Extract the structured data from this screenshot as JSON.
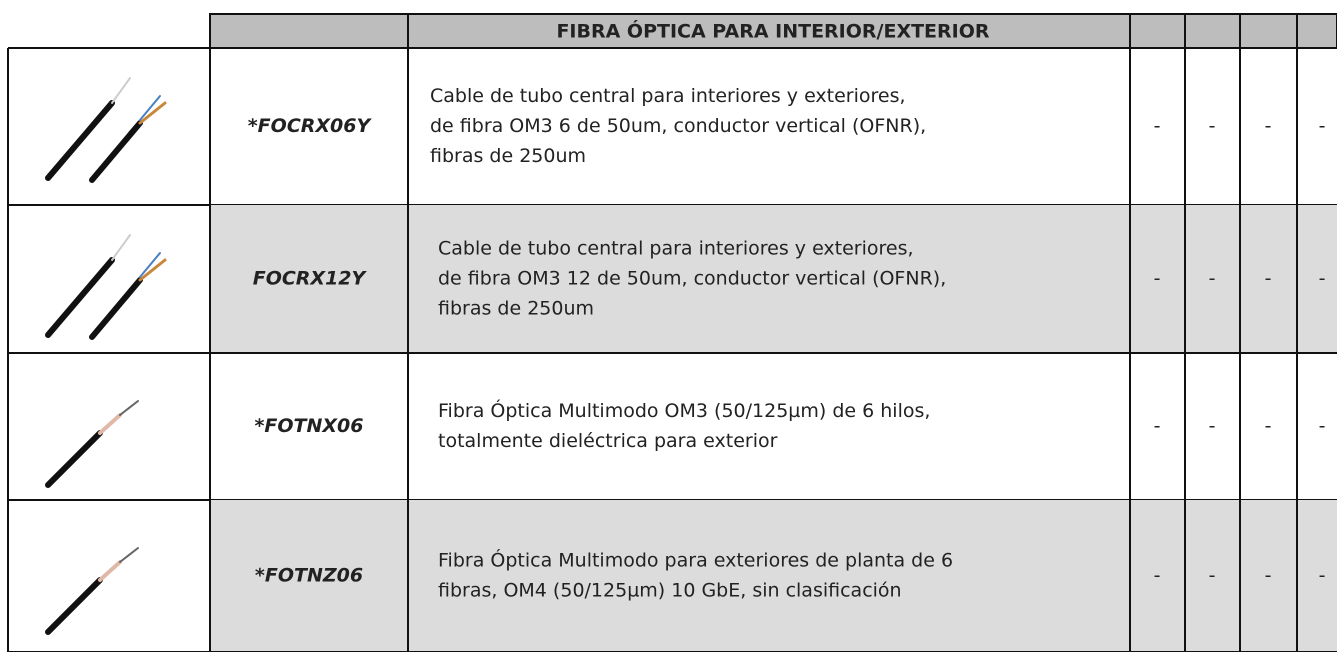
{
  "table": {
    "title": "FIBRA ÓPTICA PARA INTERIOR/EXTERIOR",
    "rows": [
      {
        "code": "*FOCRX06Y",
        "description": [
          "Cable de tubo central para interiores y exteriores,",
          "de fibra OM3 6 de 50um, conductor vertical (OFNR),",
          "fibras de 250um"
        ],
        "cols": [
          "-",
          "-",
          "-",
          "-"
        ]
      },
      {
        "code": "FOCRX12Y",
        "description": [
          "Cable de tubo central para interiores y exteriores,",
          "de fibra OM3 12 de 50um, conductor vertical (OFNR),",
          "fibras de 250um"
        ],
        "cols": [
          "-",
          "-",
          "-",
          "-"
        ]
      },
      {
        "code": "*FOTNX06",
        "description": [
          "Fibra Óptica Multimodo OM3 (50/125µm) de 6 hilos,",
          "totalmente dieléctrica para exterior"
        ],
        "cols": [
          "-",
          "-",
          "-",
          "-"
        ]
      },
      {
        "code": "*FOTNZ06",
        "description": [
          "Fibra Óptica Multimodo para exteriores de planta de 6",
          "fibras, OM4 (50/125µm) 10 GbE, sin clasificación"
        ],
        "cols": [
          "-",
          "-",
          "-",
          "-"
        ]
      }
    ]
  }
}
